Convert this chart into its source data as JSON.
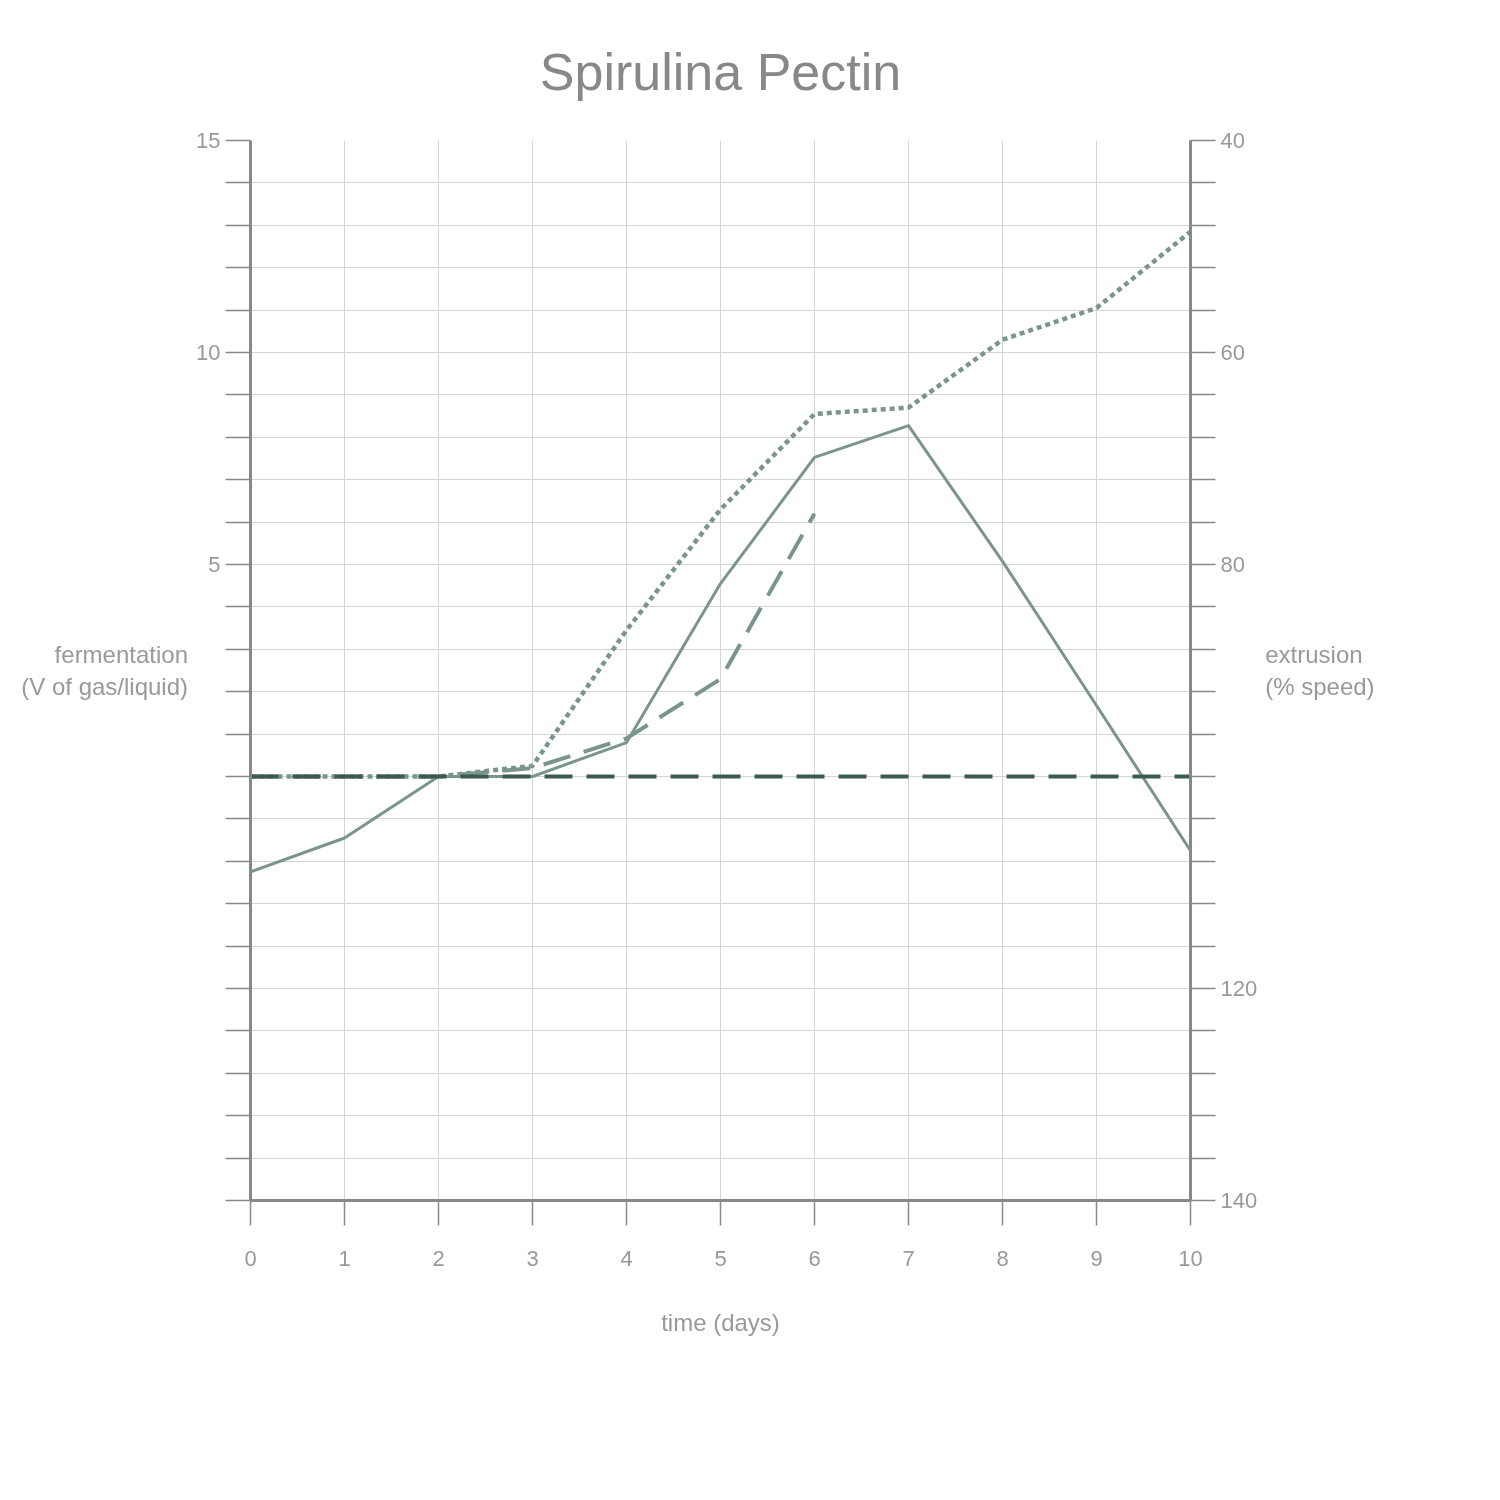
{
  "chart_data": {
    "type": "line",
    "title": "Spirulina Pectin",
    "xlabel": "time (days)",
    "ylabel": "fermentation\n(V of gas/liquid)",
    "y2label": "extrusion\n(% speed)",
    "x": [
      0,
      1,
      2,
      3,
      4,
      5,
      6,
      7,
      8,
      9,
      10
    ],
    "xlim": [
      0,
      10
    ],
    "xticks": [
      0,
      1,
      2,
      3,
      4,
      5,
      6,
      7,
      8,
      9,
      10
    ],
    "ylim": [
      -10,
      15
    ],
    "yticks": [
      {
        "value": -10,
        "label": null
      },
      {
        "value": -9,
        "label": null
      },
      {
        "value": -8,
        "label": null
      },
      {
        "value": -7,
        "label": null
      },
      {
        "value": -6,
        "label": null
      },
      {
        "value": -5,
        "label": null
      },
      {
        "value": -4,
        "label": null
      },
      {
        "value": -3,
        "label": null
      },
      {
        "value": -2,
        "label": null
      },
      {
        "value": -1,
        "label": null
      },
      {
        "value": 0,
        "label": null
      },
      {
        "value": 1,
        "label": null
      },
      {
        "value": 2,
        "label": null
      },
      {
        "value": 3,
        "label": null
      },
      {
        "value": 4,
        "label": null
      },
      5,
      {
        "value": 6,
        "label": null
      },
      {
        "value": 7,
        "label": null
      },
      {
        "value": 8,
        "label": null
      },
      {
        "value": 9,
        "label": null
      },
      10,
      {
        "value": 11,
        "label": null
      },
      {
        "value": 12,
        "label": null
      },
      {
        "value": 13,
        "label": null
      },
      {
        "value": 14,
        "label": null
      },
      15
    ],
    "y2lim": [
      140,
      40
    ],
    "y2ticks": [
      40,
      {
        "value": 44,
        "label": null
      },
      {
        "value": 48,
        "label": null
      },
      {
        "value": 52,
        "label": null
      },
      {
        "value": 56,
        "label": null
      },
      60,
      {
        "value": 64,
        "label": null
      },
      {
        "value": 68,
        "label": null
      },
      {
        "value": 72,
        "label": null
      },
      {
        "value": 76,
        "label": null
      },
      80,
      {
        "value": 84,
        "label": null
      },
      {
        "value": 88,
        "label": null
      },
      {
        "value": 92,
        "label": null
      },
      {
        "value": 96,
        "label": null
      },
      {
        "value": 100,
        "label": null
      },
      {
        "value": 104,
        "label": null
      },
      {
        "value": 108,
        "label": null
      },
      {
        "value": 112,
        "label": null
      },
      {
        "value": 116,
        "label": null
      },
      120,
      {
        "value": 124,
        "label": null
      },
      {
        "value": 128,
        "label": null
      },
      {
        "value": 132,
        "label": null
      },
      {
        "value": 136,
        "label": null
      },
      140
    ],
    "grid": true,
    "marker": "none",
    "series": [
      {
        "color": "#7a968c",
        "line_style": "dotted",
        "values": [
          0,
          0,
          0,
          0.25,
          3.45,
          6.3,
          8.55,
          8.7,
          10.3,
          11.05,
          12.85
        ]
      },
      {
        "color": "#7a968c",
        "line_style": "dashed",
        "values": [
          0,
          0,
          0,
          0.2,
          0.9,
          2.3,
          6.2,
          null,
          null,
          null,
          null
        ]
      },
      {
        "color": "#7a968c",
        "line_style": "solid",
        "axis": "y2",
        "values": [
          109,
          105.8,
          100,
          100,
          96.8,
          81.8,
          69.9,
          66.9,
          79.7,
          93.3,
          107
        ]
      },
      {
        "color": "#3d5a52",
        "line_style": "dashed",
        "values": [
          0,
          0,
          0,
          0,
          0,
          0,
          0,
          0,
          0,
          0,
          0
        ]
      }
    ]
  }
}
